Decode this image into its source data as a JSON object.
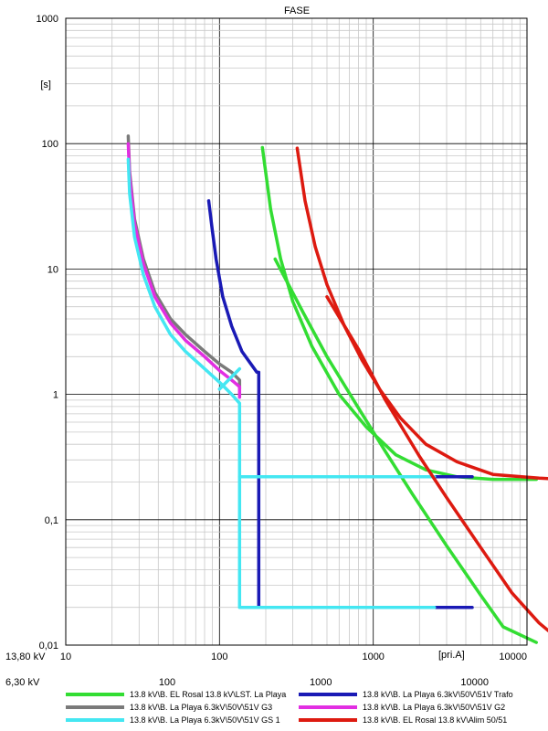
{
  "chart_data": {
    "type": "line",
    "title": "FASE",
    "scale": {
      "x": "log",
      "y": "log"
    },
    "xlim": [
      10,
      10000
    ],
    "ylim": [
      0.01,
      1000
    ],
    "grid": true,
    "legend_position": "bottom",
    "xlabel": "[pri.A]",
    "ylabel": "[s]",
    "y_ticks": [
      {
        "value": 1000,
        "label": "1000"
      },
      {
        "value": 100,
        "label": "100"
      },
      {
        "value": 10,
        "label": "10"
      },
      {
        "value": 1,
        "label": "1"
      },
      {
        "value": 0.1,
        "label": "0,1"
      },
      {
        "value": 0.01,
        "label": "0,01"
      }
    ],
    "x_axes": [
      {
        "voltage": "13,80 kV",
        "ticks": [
          {
            "value": 10,
            "label": "10"
          },
          {
            "value": 100,
            "label": "100"
          },
          {
            "value": 1000,
            "label": "1000"
          },
          {
            "value": 10000,
            "label": "10000"
          }
        ]
      },
      {
        "voltage": "6,30 kV",
        "ticks": [
          {
            "value": 100,
            "label": "100"
          },
          {
            "value": 1000,
            "label": "1000"
          },
          {
            "value": 10000,
            "label": "10000"
          }
        ]
      }
    ],
    "series": [
      {
        "name": "13.8 kV\\B. EL Rosal 13.8 kV\\LST. La Playa",
        "color": "#33dd33",
        "curves": [
          [
            [
              190,
              93
            ],
            [
              215,
              30
            ],
            [
              250,
              12
            ],
            [
              300,
              5.5
            ],
            [
              400,
              2.4
            ],
            [
              600,
              1.0
            ],
            [
              900,
              0.55
            ],
            [
              1400,
              0.33
            ],
            [
              2200,
              0.25
            ],
            [
              3500,
              0.22
            ],
            [
              6000,
              0.21
            ],
            [
              11500,
              0.21
            ]
          ],
          [
            [
              230,
              12
            ],
            [
              350,
              4.5
            ],
            [
              500,
              2.0
            ],
            [
              800,
              0.78
            ],
            [
              1200,
              0.35
            ],
            [
              1800,
              0.16
            ],
            [
              3000,
              0.062
            ],
            [
              5000,
              0.025
            ],
            [
              7000,
              0.014
            ],
            [
              11500,
              0.0105
            ]
          ]
        ]
      },
      {
        "name": "13.8 kV\\B. La Playa 6.3kV\\50V\\51V Trafo",
        "color": "#1a1ab5",
        "curves": [
          [
            [
              85,
              35
            ],
            [
              90,
              20
            ],
            [
              95,
              12
            ],
            [
              105,
              6
            ],
            [
              120,
              3.5
            ],
            [
              140,
              2.2
            ],
            [
              160,
              1.75
            ],
            [
              175,
              1.5
            ],
            [
              180,
              1.5
            ],
            [
              180,
              0.02
            ],
            [
              4400,
              0.02
            ]
          ],
          [
            [
              180,
              0.22
            ],
            [
              4400,
              0.22
            ]
          ]
        ]
      },
      {
        "name": "13.8 kV\\B. La Playa 6.3kV\\50V\\51V G3",
        "color": "#7a7a7a",
        "curves": [
          [
            [
              25.5,
              115
            ],
            [
              26,
              60
            ],
            [
              28,
              25
            ],
            [
              32,
              12
            ],
            [
              38,
              6.5
            ],
            [
              48,
              4.0
            ],
            [
              60,
              3.0
            ],
            [
              80,
              2.2
            ],
            [
              100,
              1.75
            ],
            [
              120,
              1.5
            ],
            [
              135,
              1.3
            ],
            [
              135,
              1.1
            ]
          ]
        ]
      },
      {
        "name": "13.8 kV\\B. La Playa 6.3kV\\50V\\51V G2",
        "color": "#e22ee2",
        "curves": [
          [
            [
              25.5,
              100
            ],
            [
              26,
              55
            ],
            [
              28,
              23
            ],
            [
              32,
              11
            ],
            [
              38,
              6
            ],
            [
              48,
              3.7
            ],
            [
              60,
              2.7
            ],
            [
              80,
              2.0
            ],
            [
              100,
              1.55
            ],
            [
              120,
              1.3
            ],
            [
              135,
              1.15
            ],
            [
              135,
              0.95
            ]
          ]
        ]
      },
      {
        "name": "13.8 kV\\B. La Playa 6.3kV\\50V\\51V GS 1",
        "color": "#44e7f2",
        "curves": [
          [
            [
              25.5,
              75
            ],
            [
              26,
              40
            ],
            [
              28,
              18
            ],
            [
              32,
              9
            ],
            [
              38,
              5
            ],
            [
              48,
              3.0
            ],
            [
              60,
              2.2
            ],
            [
              80,
              1.6
            ],
            [
              100,
              1.25
            ],
            [
              120,
              1.0
            ],
            [
              135,
              0.85
            ],
            [
              135,
              0.02
            ],
            [
              2500,
              0.02
            ]
          ],
          [
            [
              135,
              0.22
            ],
            [
              2500,
              0.22
            ]
          ],
          [
            [
              100,
              1.1
            ],
            [
              135,
              1.6
            ]
          ]
        ]
      },
      {
        "name": "13.8 kV\\B. EL Rosal 13.8 kV\\Alim 50/51",
        "color": "#dd1a10",
        "curves": [
          [
            [
              320,
              92
            ],
            [
              360,
              35
            ],
            [
              420,
              15
            ],
            [
              500,
              7.5
            ],
            [
              650,
              3.5
            ],
            [
              850,
              1.85
            ],
            [
              1100,
              1.1
            ],
            [
              1500,
              0.65
            ],
            [
              2200,
              0.4
            ],
            [
              3500,
              0.29
            ],
            [
              6000,
              0.23
            ],
            [
              12000,
              0.215
            ],
            [
              17000,
              0.21
            ]
          ],
          [
            [
              500,
              6
            ],
            [
              800,
              2.3
            ],
            [
              1200,
              0.9
            ],
            [
              2000,
              0.32
            ],
            [
              3000,
              0.15
            ],
            [
              5000,
              0.06
            ],
            [
              8000,
              0.026
            ],
            [
              12000,
              0.015
            ],
            [
              17000,
              0.0105
            ]
          ]
        ]
      }
    ]
  }
}
